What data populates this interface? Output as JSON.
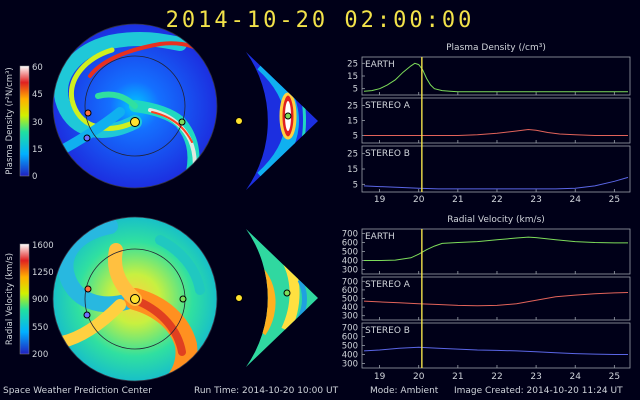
{
  "header": {
    "timestamp": "2014-10-20  02:00:00"
  },
  "footer": {
    "organization": "Space Weather Prediction Center",
    "run_time": "Run Time: 2014-10-20 10:00 UT",
    "mode": "Mode: Ambient",
    "image_created": "Image Created: 2014-10-20 11:24 UT"
  },
  "colors": {
    "background": "#000018",
    "title": "#f2e24a",
    "earth_series": "#7ddc5a",
    "stereo_a_series": "#e2635a",
    "stereo_b_series": "#5a66e6",
    "marker_line": "#f2e24a",
    "sun": "#ffe22e",
    "earth_marker": "#7ddc5a",
    "stereo_a_marker": "#ff7040",
    "stereo_b_marker": "#7070ff"
  },
  "colorbars": [
    {
      "label": "Plasma Density (r²N/cm³)",
      "ticks": [
        "60",
        "45",
        "30",
        "15",
        "0"
      ]
    },
    {
      "label": "Radial Velocity (km/s)",
      "ticks": [
        "1600",
        "1250",
        "900",
        "550",
        "200"
      ]
    }
  ],
  "chart_data": [
    {
      "type": "line",
      "title": "Plasma Density (/cm³)",
      "x_ticks": [
        "19",
        "20",
        "21",
        "22",
        "23",
        "24",
        "25"
      ],
      "xlim": [
        18.55,
        25.4
      ],
      "marker_x": 20.08,
      "panels": [
        {
          "name": "EARTH",
          "ylim": [
            0,
            30
          ],
          "y_ticks": [
            "25",
            "15",
            "5"
          ],
          "x": [
            18.6,
            18.8,
            19.0,
            19.2,
            19.4,
            19.6,
            19.8,
            19.9,
            20.0,
            20.1,
            20.2,
            20.3,
            20.4,
            20.6,
            20.8,
            21.0,
            21.5,
            22.0,
            22.5,
            23.0,
            23.5,
            24.0,
            24.5,
            25.0,
            25.35
          ],
          "y": [
            3,
            3.5,
            5,
            8,
            12,
            18,
            23,
            25,
            24,
            20,
            13,
            8,
            5,
            3.5,
            3,
            2.5,
            2.5,
            2.5,
            2.5,
            2.5,
            2.5,
            2.5,
            2.5,
            2.5,
            2.5
          ]
        },
        {
          "name": "STEREO A",
          "ylim": [
            0,
            30
          ],
          "y_ticks": [
            "25",
            "15",
            "5"
          ],
          "x": [
            18.6,
            19.0,
            19.5,
            20.0,
            20.5,
            21.0,
            21.5,
            22.0,
            22.5,
            22.8,
            23.0,
            23.3,
            23.6,
            24.0,
            24.5,
            25.0,
            25.35
          ],
          "y": [
            5,
            5,
            5,
            5,
            5,
            5,
            5.5,
            6.5,
            8,
            9,
            8.5,
            7,
            6,
            5.5,
            5,
            5,
            5
          ]
        },
        {
          "name": "STEREO B",
          "ylim": [
            0,
            30
          ],
          "y_ticks": [
            "25",
            "15",
            "5"
          ],
          "x": [
            18.6,
            19.0,
            19.5,
            20.0,
            20.5,
            21.0,
            21.5,
            22.0,
            22.5,
            23.0,
            23.5,
            24.0,
            24.5,
            25.0,
            25.35
          ],
          "y": [
            4,
            3.5,
            3,
            2.5,
            2,
            2,
            2,
            2,
            2,
            2,
            2,
            2.5,
            4,
            7,
            9.5
          ]
        }
      ]
    },
    {
      "type": "line",
      "title": "Radial Velocity (km/s)",
      "x_ticks": [
        "19",
        "20",
        "21",
        "22",
        "23",
        "24",
        "25"
      ],
      "xlim": [
        18.55,
        25.4
      ],
      "marker_x": 20.08,
      "panels": [
        {
          "name": "EARTH",
          "ylim": [
            250,
            750
          ],
          "y_ticks": [
            "700",
            "600",
            "500",
            "400",
            "300"
          ],
          "x": [
            18.6,
            19.0,
            19.4,
            19.8,
            20.0,
            20.2,
            20.4,
            20.6,
            21.0,
            21.5,
            22.0,
            22.5,
            22.8,
            23.0,
            23.5,
            24.0,
            24.5,
            25.0,
            25.35
          ],
          "y": [
            400,
            400,
            405,
            430,
            470,
            520,
            560,
            590,
            600,
            610,
            630,
            650,
            660,
            655,
            630,
            610,
            600,
            595,
            595
          ]
        },
        {
          "name": "STEREO A",
          "ylim": [
            250,
            750
          ],
          "y_ticks": [
            "700",
            "600",
            "500",
            "400",
            "300"
          ],
          "x": [
            18.6,
            19.0,
            19.5,
            20.0,
            20.5,
            21.0,
            21.5,
            22.0,
            22.5,
            23.0,
            23.5,
            24.0,
            24.5,
            25.0,
            25.35
          ],
          "y": [
            470,
            460,
            450,
            440,
            430,
            420,
            415,
            420,
            440,
            480,
            520,
            540,
            555,
            565,
            570
          ]
        },
        {
          "name": "STEREO B",
          "ylim": [
            250,
            750
          ],
          "y_ticks": [
            "700",
            "600",
            "500",
            "400",
            "300"
          ],
          "x": [
            18.6,
            19.0,
            19.5,
            20.0,
            20.5,
            21.0,
            21.5,
            22.0,
            22.5,
            23.0,
            23.5,
            24.0,
            24.5,
            25.0,
            25.35
          ],
          "y": [
            440,
            450,
            470,
            480,
            470,
            460,
            450,
            445,
            440,
            430,
            420,
            410,
            405,
            400,
            400
          ]
        }
      ]
    }
  ]
}
